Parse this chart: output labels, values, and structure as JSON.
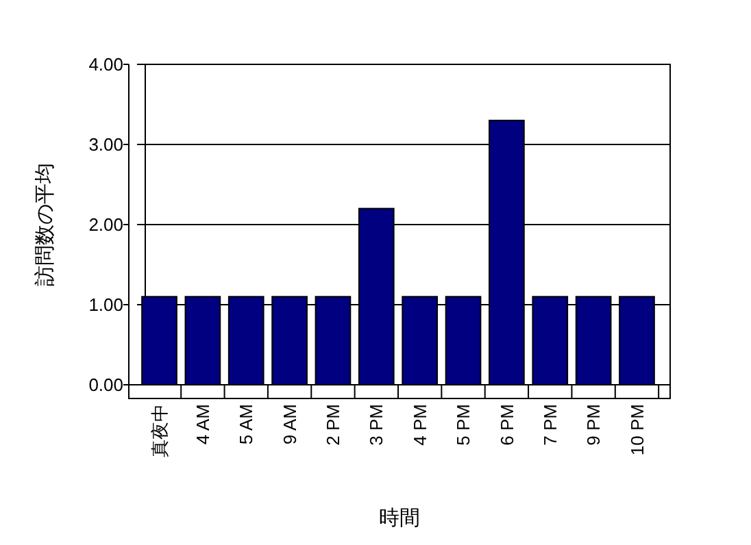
{
  "chart_data": {
    "type": "bar",
    "xlabel": "時間",
    "ylabel": "訪問数の平均",
    "categories": [
      "真夜中",
      "4 AM",
      "5 AM",
      "9 AM",
      "2 PM",
      "3 PM",
      "4 PM",
      "5 PM",
      "6 PM",
      "7 PM",
      "9 PM",
      "10 PM"
    ],
    "values": [
      1.1,
      1.1,
      1.1,
      1.1,
      1.1,
      2.2,
      1.1,
      1.1,
      3.3,
      1.1,
      1.1,
      1.1
    ],
    "color": "#000080",
    "ylim": [
      0,
      4
    ],
    "yticks": [
      {
        "value": 0,
        "label": "0.00"
      },
      {
        "value": 1,
        "label": "1.00"
      },
      {
        "value": 2,
        "label": "2.00"
      },
      {
        "value": 3,
        "label": "3.00"
      },
      {
        "value": 4,
        "label": "4.00"
      }
    ],
    "grid": "y"
  }
}
